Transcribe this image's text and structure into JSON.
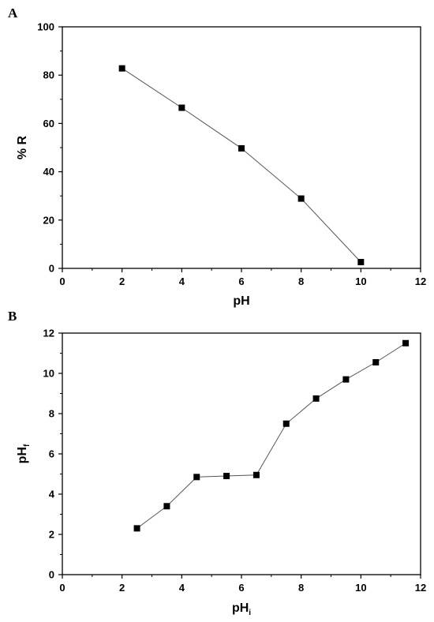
{
  "chart_data": [
    {
      "type": "line",
      "panel_label": "A",
      "xlabel": "pH",
      "ylabel": "% R",
      "xlim": [
        0,
        12
      ],
      "ylim": [
        0,
        100
      ],
      "x_ticks": [
        0,
        2,
        4,
        6,
        8,
        10,
        12
      ],
      "y_ticks": [
        0,
        20,
        40,
        60,
        80,
        100
      ],
      "grid": false,
      "marker": "square",
      "series": [
        {
          "x": [
            2,
            4,
            6,
            8,
            10
          ],
          "y": [
            82.8,
            66.5,
            49.7,
            28.9,
            2.6
          ]
        }
      ]
    },
    {
      "type": "line",
      "panel_label": "B",
      "xlabel": "pH",
      "xlabel_subscript": "i",
      "ylabel": "pH",
      "ylabel_subscript": "f",
      "xlim": [
        0,
        12
      ],
      "ylim": [
        0,
        12
      ],
      "x_ticks": [
        0,
        2,
        4,
        6,
        8,
        10,
        12
      ],
      "y_ticks": [
        0,
        2,
        4,
        6,
        8,
        10,
        12
      ],
      "grid": false,
      "marker": "square",
      "series": [
        {
          "x": [
            2.5,
            3.5,
            4.5,
            5.5,
            6.5,
            7.5,
            8.5,
            9.5,
            10.5,
            11.5
          ],
          "y": [
            2.3,
            3.4,
            4.85,
            4.9,
            4.95,
            7.5,
            8.75,
            9.7,
            10.55,
            11.5
          ]
        }
      ]
    }
  ]
}
